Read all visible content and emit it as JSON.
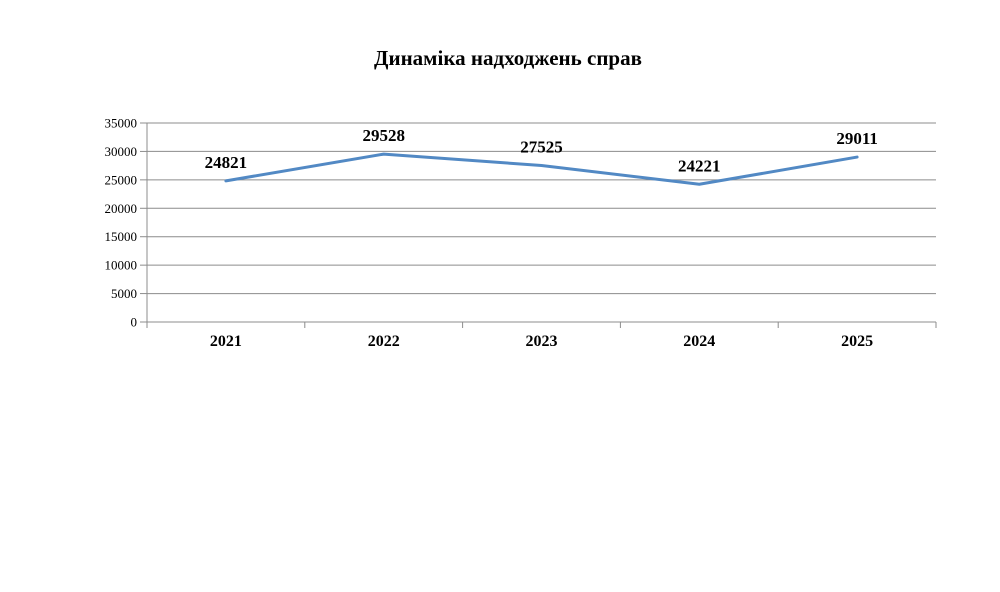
{
  "chart_data": {
    "type": "line",
    "title": "Динаміка надходжень справ",
    "categories": [
      "2021",
      "2022",
      "2023",
      "2024",
      "2025"
    ],
    "values": [
      24821,
      29528,
      27525,
      24221,
      29011
    ],
    "data_labels": [
      "24821",
      "29528",
      "27525",
      "24221",
      "29011"
    ],
    "ylim": [
      0,
      35000
    ],
    "ytick_step": 5000,
    "yticks": [
      0,
      5000,
      10000,
      15000,
      20000,
      25000,
      30000,
      35000
    ],
    "xlabel": "",
    "ylabel": "",
    "grid": true,
    "legend": "none",
    "markers": "none",
    "colors": {
      "series_line": "#5289C4",
      "gridline": "#8C8C8C",
      "axis": "#8C8C8C",
      "text": "#000000",
      "background": "#FFFFFF"
    }
  }
}
